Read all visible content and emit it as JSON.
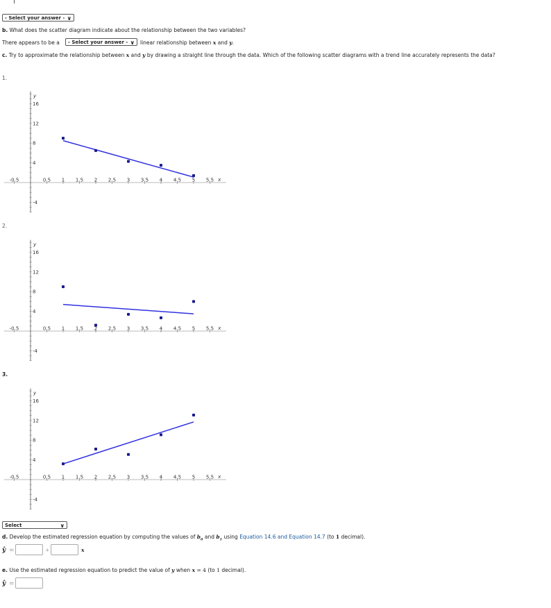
{
  "part_a": {
    "select_value": "- Select your answer -"
  },
  "part_b": {
    "question_label": "b.",
    "question_text": "What does the scatter diagram indicate about the relationship between the two variables?",
    "answer_prefix": "There appears to be a",
    "select_value": "- Select your answer -",
    "answer_suffix_pre": "linear relationship between",
    "var_x": "x",
    "and_word": "and",
    "var_y": "y",
    "period": "."
  },
  "part_c": {
    "question_label": "c.",
    "question_text_1": "Try to approximate the relationship between",
    "var_x": "x",
    "and_word": "and",
    "var_y": "y",
    "question_text_2": "by drawing a straight line through the data. Which of the following scatter diagrams with a trend line accurately represents the data?",
    "options": [
      {
        "label": "1."
      },
      {
        "label": "2."
      },
      {
        "label": "3."
      }
    ],
    "select_value": "Select"
  },
  "chart_data": [
    {
      "type": "scatter",
      "xlabel": "x",
      "ylabel": "y",
      "x_ticks": [
        "-0.5",
        "0.5",
        "1",
        "1.5",
        "2",
        "2.5",
        "3",
        "3.5",
        "4",
        "4.5",
        "5",
        "5.5"
      ],
      "y_ticks": [
        "16",
        "12",
        "8",
        "4",
        "-4"
      ],
      "points": [
        {
          "x": 1,
          "y": 9
        },
        {
          "x": 2,
          "y": 6.5
        },
        {
          "x": 3,
          "y": 4.3
        },
        {
          "x": 4,
          "y": 3.5
        },
        {
          "x": 5,
          "y": 1.4
        }
      ],
      "trend_line": [
        {
          "x": 1,
          "y": 8.5
        },
        {
          "x": 5,
          "y": 1.1
        }
      ],
      "xlim": [
        -0.8,
        6
      ],
      "ylim": [
        -6,
        18.5
      ],
      "point_color": "#1a1a8c",
      "line_color": "#3030e0"
    },
    {
      "type": "scatter",
      "xlabel": "x",
      "ylabel": "y",
      "x_ticks": [
        "-0.5",
        "0.5",
        "1",
        "1.5",
        "2",
        "2.5",
        "3",
        "3.5",
        "4",
        "4.5",
        "5",
        "5.5"
      ],
      "y_ticks": [
        "16",
        "12",
        "8",
        "4",
        "-4"
      ],
      "points": [
        {
          "x": 1,
          "y": 9
        },
        {
          "x": 2,
          "y": 1.2
        },
        {
          "x": 3,
          "y": 3.4
        },
        {
          "x": 4,
          "y": 2.7
        },
        {
          "x": 5,
          "y": 6
        }
      ],
      "trend_line": [
        {
          "x": 1,
          "y": 5.4
        },
        {
          "x": 5,
          "y": 3.5
        }
      ],
      "xlim": [
        -0.8,
        6
      ],
      "ylim": [
        -6,
        18.5
      ],
      "point_color": "#1a1a8c",
      "line_color": "#3030e0"
    },
    {
      "type": "scatter",
      "xlabel": "x",
      "ylabel": "y",
      "x_ticks": [
        "-0.5",
        "0.5",
        "1",
        "1.5",
        "2",
        "2.5",
        "3",
        "3.5",
        "4",
        "4.5",
        "5",
        "5.5"
      ],
      "y_ticks": [
        "16",
        "12",
        "8",
        "4",
        "-4"
      ],
      "points": [
        {
          "x": 1,
          "y": 3.2
        },
        {
          "x": 2,
          "y": 6.2
        },
        {
          "x": 3,
          "y": 5.1
        },
        {
          "x": 4,
          "y": 9.1
        },
        {
          "x": 5,
          "y": 13.1
        }
      ],
      "trend_line": [
        {
          "x": 1,
          "y": 3.2
        },
        {
          "x": 5,
          "y": 11.7
        }
      ],
      "xlim": [
        -0.8,
        6
      ],
      "ylim": [
        -6,
        18.5
      ],
      "point_color": "#1a1a8c",
      "line_color": "#3030e0"
    }
  ],
  "part_d": {
    "question_label": "d.",
    "text_1": "Develop the estimated regression equation by computing the values of",
    "b0": "b",
    "b0_sub": "0",
    "and_word": "and",
    "b1": "b",
    "b1_sub": "1",
    "text_2": "using",
    "link_text": "Equation 14.6 and Equation 14.7",
    "text_3": "(to",
    "decimals": "1",
    "text_4": "decimal).",
    "yhat": "ŷ",
    "equals": "=",
    "plus": "+",
    "var_x": "x"
  },
  "part_e": {
    "question_label": "e.",
    "text_1": "Use the estimated regression equation to predict the value of",
    "var_y": "y",
    "text_2": "when",
    "var_x": "x",
    "eq": "=",
    "x_value": "4",
    "text_3": "(to",
    "decimals": "1",
    "text_4": "decimal).",
    "yhat": "ŷ",
    "equals": "="
  }
}
